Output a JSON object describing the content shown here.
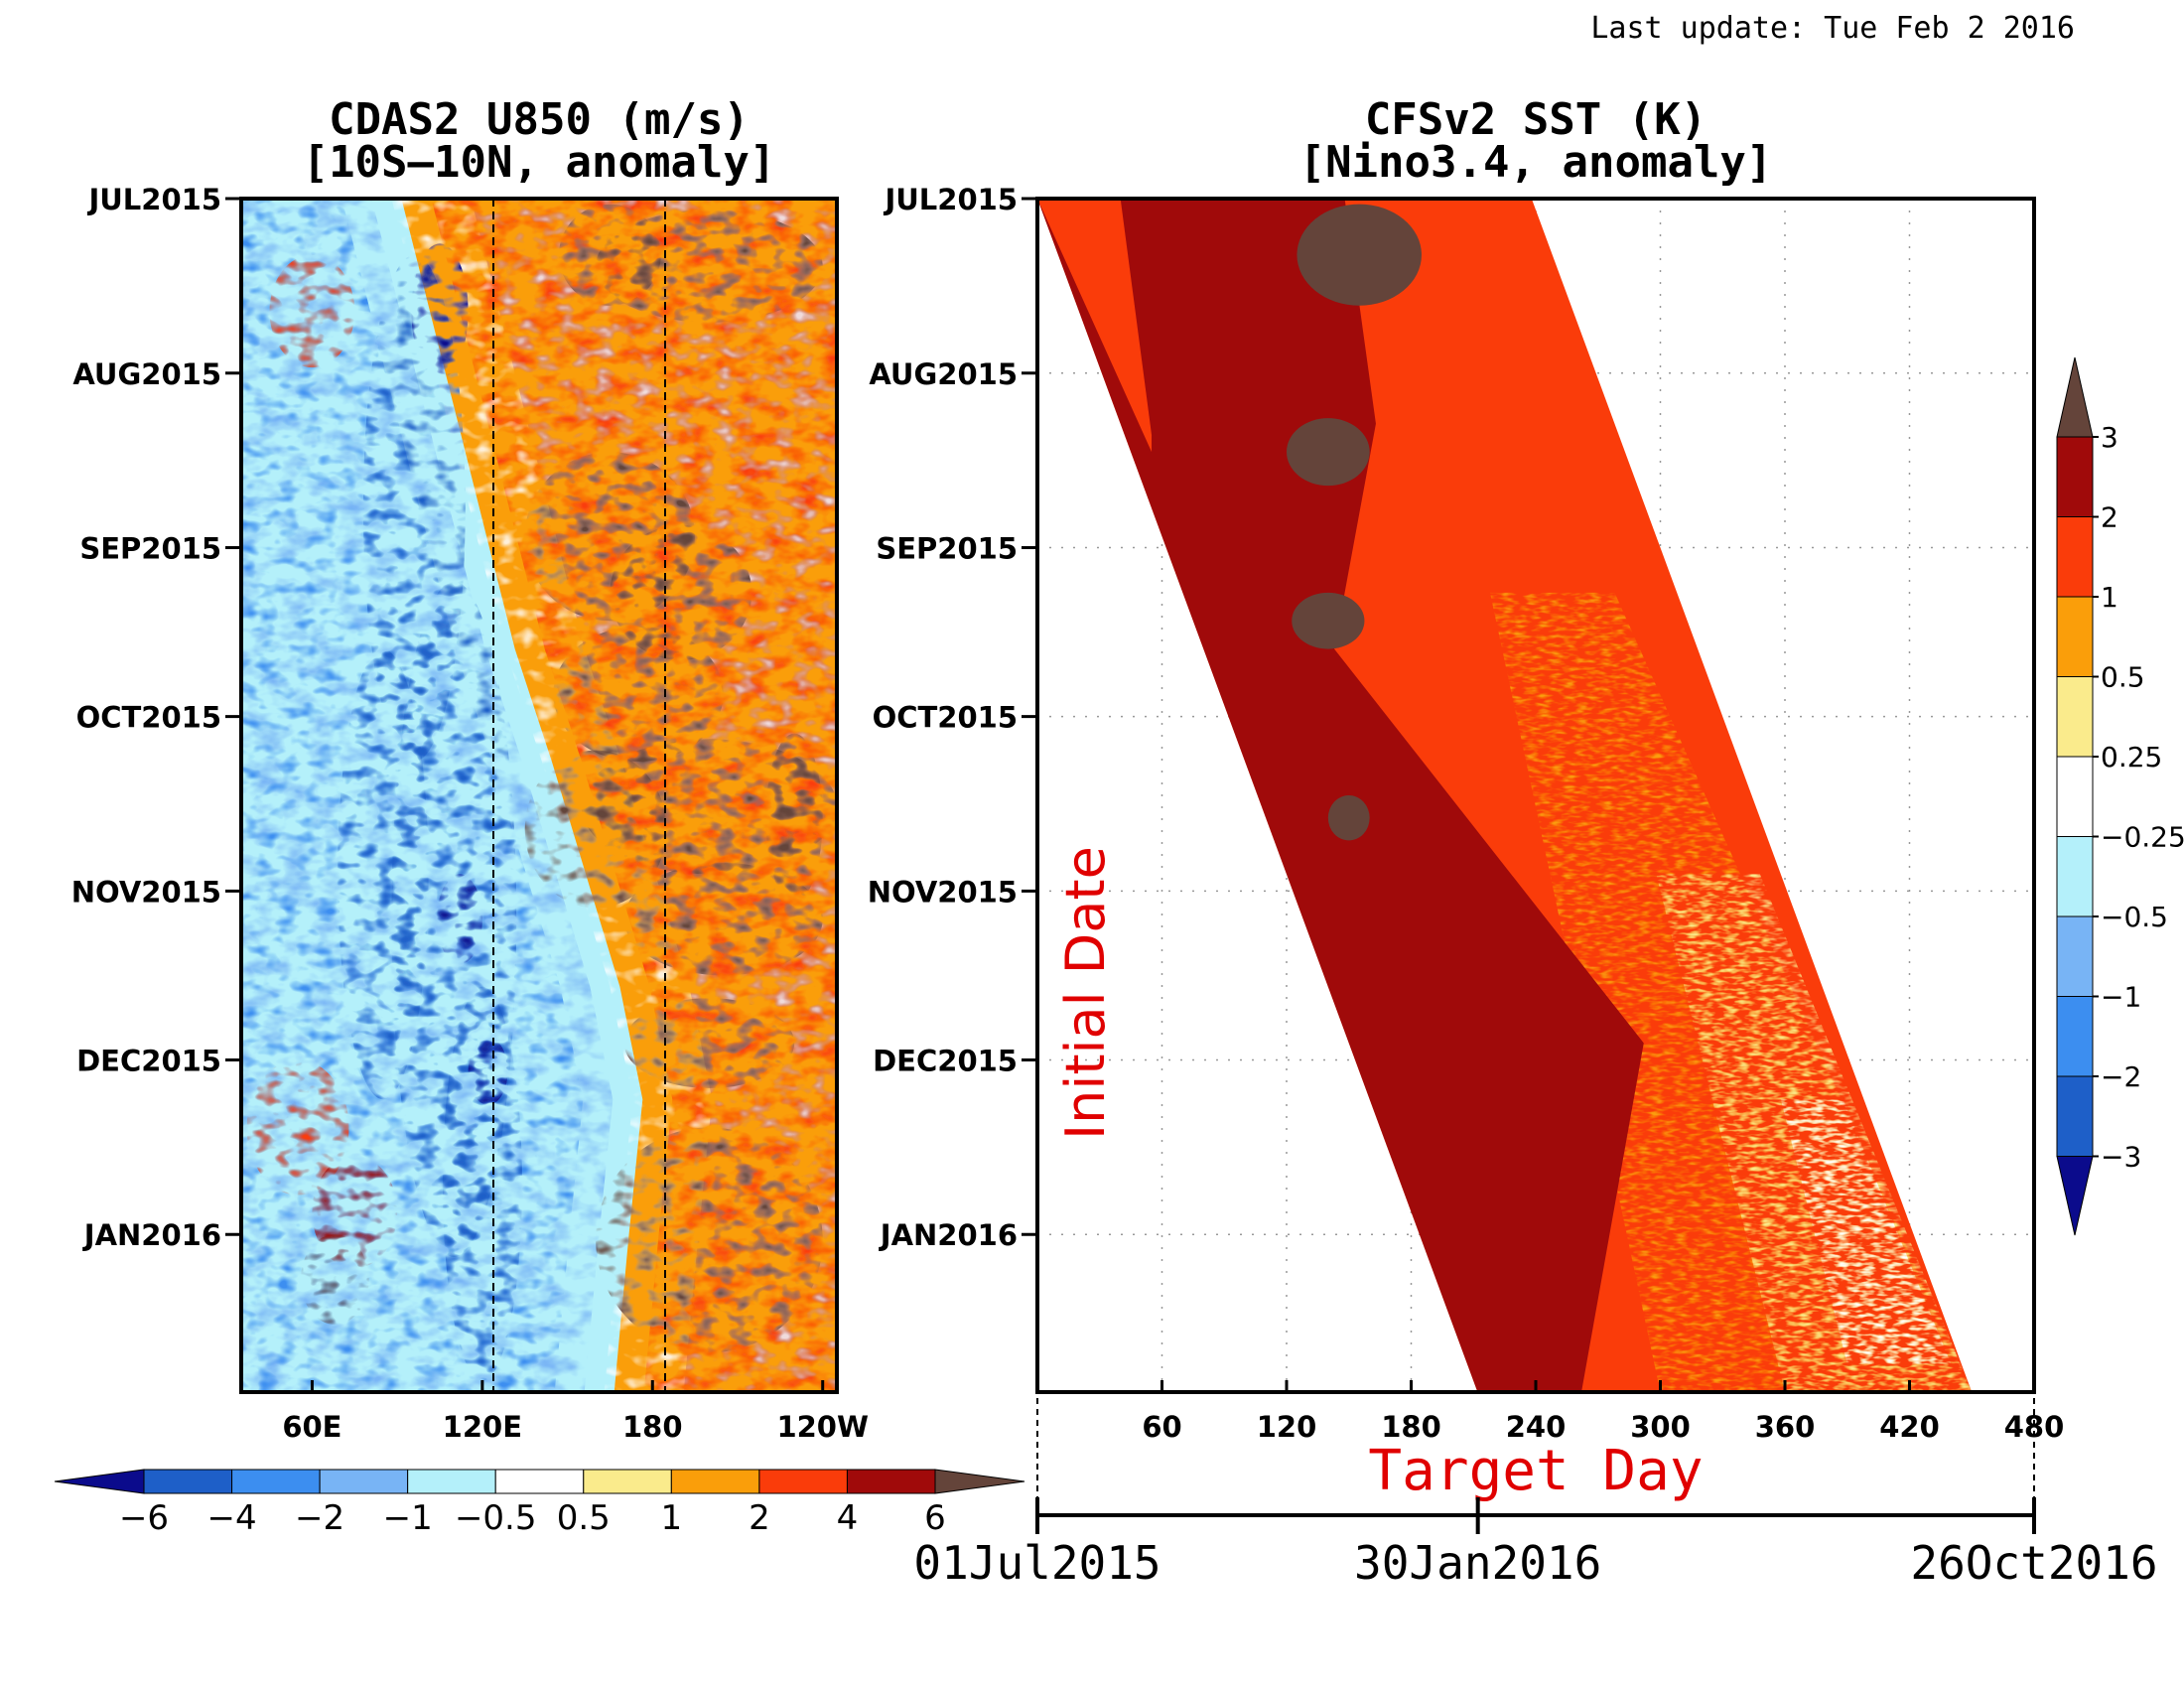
{
  "last_update": "Last update: Tue Feb 2 2016",
  "palette": [
    "#0b0b8c",
    "#1e5fc8",
    "#3c8ef0",
    "#78b4f5",
    "#b4f0fa",
    "#ffffff",
    "#faeb8c",
    "#fa9e0a",
    "#fa3c0a",
    "#a00a0a",
    "#64443a"
  ],
  "chart_data": [
    {
      "type": "heatmap",
      "title": "CDAS2 U850 (m/s)",
      "subtitle": "[10S–10N, anomaly]",
      "x_ticks": [
        "60E",
        "120E",
        "180",
        "120W"
      ],
      "x_tick_lon": [
        60,
        120,
        180,
        240
      ],
      "x_range": [
        35,
        245
      ],
      "y_ticks": [
        "JUL2015",
        "AUG2015",
        "SEP2015",
        "OCT2015",
        "NOV2015",
        "DEC2015",
        "JAN2016"
      ],
      "y_tick_day": [
        0,
        31,
        62,
        92,
        123,
        153,
        184
      ],
      "y_range_days": [
        0,
        212
      ],
      "reference_lines_lon": [
        120,
        180
      ],
      "colorbar_labels": [
        "−6",
        "−4",
        "−2",
        "−1",
        "−0.5",
        "0.5",
        "1",
        "2",
        "4",
        "6"
      ],
      "colorbar_levels": [
        -6,
        -4,
        -2,
        -1,
        -0.5,
        0.5,
        1,
        2,
        4,
        6
      ],
      "cross_lon": [
        95,
        105,
        115,
        125,
        135,
        148,
        160,
        172,
        180,
        175,
        170
      ],
      "cross_day": [
        0,
        20,
        40,
        60,
        80,
        100,
        120,
        140,
        160,
        185,
        212
      ]
    },
    {
      "type": "heatmap",
      "title": "CFSv2 SST (K)",
      "subtitle": "[Nino3.4, anomaly]",
      "x_ticks": [
        "60",
        "120",
        "180",
        "240",
        "300",
        "360",
        "420",
        "480"
      ],
      "x_tick_values": [
        60,
        120,
        180,
        240,
        300,
        360,
        420,
        480
      ],
      "x_range": [
        0,
        480
      ],
      "y_ticks": [
        "JUL2015",
        "AUG2015",
        "SEP2015",
        "OCT2015",
        "NOV2015",
        "DEC2015",
        "JAN2016"
      ],
      "y_tick_day": [
        0,
        31,
        62,
        92,
        123,
        153,
        184
      ],
      "y_range_days": [
        0,
        212
      ],
      "ylabel": "Initial Date",
      "xlabel": "Target Day",
      "forecast_band_start_day": [
        0,
        212
      ],
      "forecast_band_end_day": [
        238,
        450
      ],
      "colorbar_labels": [
        "3",
        "2",
        "1",
        "0.5",
        "0.25",
        "−0.25",
        "−0.5",
        "−1",
        "−2",
        "−3"
      ],
      "colorbar_levels": [
        3,
        2,
        1,
        0.5,
        0.25,
        -0.25,
        -0.5,
        -1,
        -2,
        -3
      ],
      "date_axis": [
        "01Jul2015",
        "30Jan2016",
        "26Oct2016"
      ],
      "date_axis_day": [
        0,
        213,
        482
      ]
    }
  ]
}
